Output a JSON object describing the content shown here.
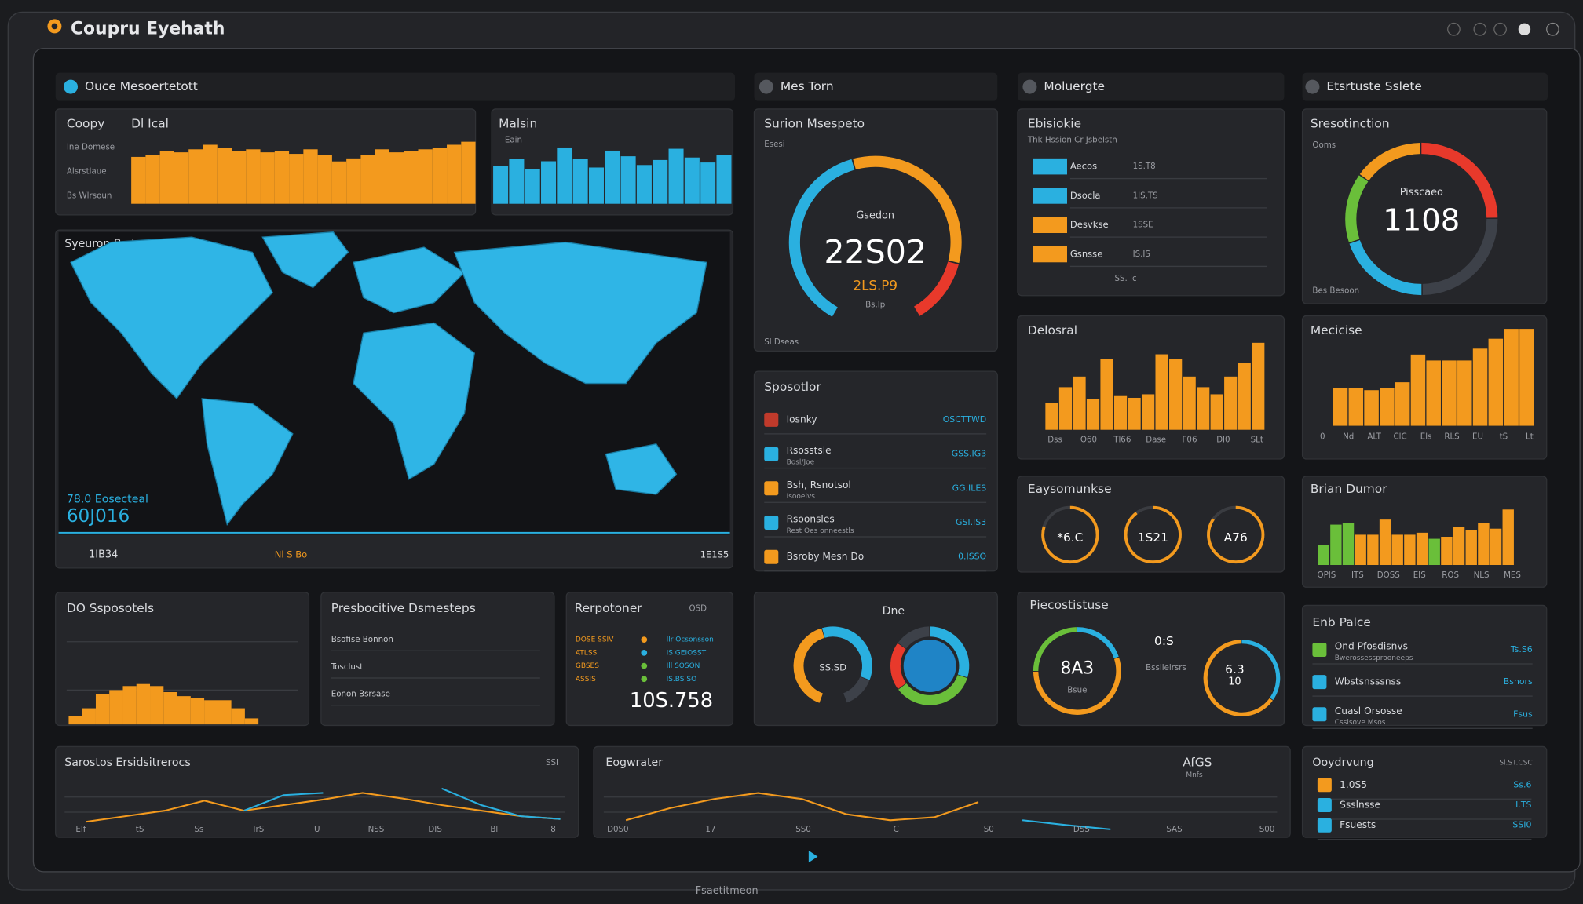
{
  "header": {
    "title": "Coupru Eyehath"
  },
  "tabs": [
    "Ouce Mesoertetott",
    "Mes Torn",
    "Moluergte",
    "Etsrtuste Sslete"
  ],
  "copy": {
    "title": "Coopy",
    "subtitle": "Dl Ical",
    "labels": [
      "Ine Domese",
      "Alsrstlaue",
      "Bs Wlrsoun"
    ],
    "color": "#f39a1e",
    "ylim": [
      0,
      100
    ],
    "values": [
      62,
      64,
      70,
      68,
      72,
      78,
      74,
      70,
      72,
      68,
      70,
      66,
      72,
      64,
      56,
      60,
      64,
      72,
      68,
      70,
      72,
      74,
      78,
      82
    ]
  },
  "malsin": {
    "title": "Malsin",
    "subtitle": "Eain",
    "color": "#2ab0e0",
    "ylim": [
      0,
      100
    ],
    "values": [
      60,
      72,
      55,
      68,
      90,
      72,
      58,
      85,
      76,
      62,
      70,
      88,
      74,
      66,
      78
    ]
  },
  "map": {
    "title": "Syeuron Bcd",
    "stat_label": "78.0 Eosecteal",
    "stat": "60J016",
    "footer_left": "1IB34",
    "footer_mid": "Nl S Bo",
    "footer_right": "1E1S5"
  },
  "gauge": {
    "title": "Surion Msespeto",
    "subtitle": "Esesi",
    "label": "Gsedon",
    "value": "22S02",
    "value_sub": "2LS.P9",
    "note": "Bs.Ip",
    "foot": "Sl Dseas",
    "segments": [
      {
        "color": "#2ab0e0",
        "value": 45
      },
      {
        "color": "#f39a1e",
        "value": 40
      },
      {
        "color": "#e8392b",
        "value": 15
      }
    ]
  },
  "ebis": {
    "title": "Ebisiokie",
    "subtitle": "Thk Hssion Cr Jsbelsth",
    "foot": "SS. Ic",
    "rows": [
      {
        "label": "Aecos",
        "value": "1S.T8",
        "color": "#2ab0e0"
      },
      {
        "label": "Dsocla",
        "value": "1IS.TS",
        "color": "#2ab0e0"
      },
      {
        "label": "Desvkse",
        "value": "1SSE",
        "color": "#f39a1e"
      },
      {
        "label": "Gsnsse",
        "value": "IS.IS",
        "color": "#f39a1e"
      }
    ]
  },
  "donut": {
    "title": "Sresotinction",
    "subtitle": "Ooms",
    "label": "Pisscaeo",
    "value": "1108",
    "foot": "Bes Besoon",
    "segments": [
      {
        "color": "#e8392b",
        "value": 25
      },
      {
        "color": "#3d4149",
        "value": 25
      },
      {
        "color": "#2ab0e0",
        "value": 20
      },
      {
        "color": "#6abf3a",
        "value": 15
      },
      {
        "color": "#f39a1e",
        "value": 15
      }
    ]
  },
  "sposotlor": {
    "title": "Sposotlor",
    "rows": [
      {
        "label": "Iosnky",
        "value": "OSCTTWD",
        "color": "#c03a2b"
      },
      {
        "label": "Rsosstsle",
        "sub": "Bosl/Joe",
        "value": "GSS.IG3",
        "color": "#2ab0e0"
      },
      {
        "label": "Bsh, Rsnotsol",
        "sub": "Isooelvs",
        "value": "GG.ILES",
        "color": "#f39a1e"
      },
      {
        "label": "Rsoonsles",
        "sub": "Rest Oes onneestls",
        "value": "GSI.IS3",
        "color": "#2ab0e0"
      },
      {
        "label": "Bsroby Mesn Do",
        "value": "0.ISSO",
        "color": "#f39a1e"
      }
    ]
  },
  "delosral": {
    "title": "Delosral",
    "color": "#f39a1e",
    "ylim": [
      0,
      100
    ],
    "values": [
      30,
      48,
      60,
      35,
      80,
      38,
      36,
      40,
      85,
      80,
      60,
      48,
      40,
      60,
      75,
      98
    ],
    "xlabels": [
      "Dss",
      "O60",
      "Tl66",
      "Dase",
      "F06",
      "Dl0",
      "SLt"
    ]
  },
  "mecicise": {
    "title": "Mecicise",
    "color": "#f39a1e",
    "ylim": [
      0,
      100
    ],
    "values": [
      38,
      38,
      36,
      38,
      44,
      72,
      66,
      66,
      66,
      78,
      88,
      98,
      98
    ],
    "xlabels": [
      "0",
      "Nd",
      "ALT",
      "ClC",
      "Els",
      "RLS",
      "EU",
      "tS",
      "Lt"
    ]
  },
  "rings": {
    "title": "Eaysomunkse",
    "ylim": [
      0,
      100
    ],
    "values": [
      80,
      90,
      85
    ],
    "labels": [
      "*6.C",
      "1S21",
      "A76"
    ],
    "colors": [
      "#f39a1e",
      "#f39a1e",
      "#f39a1e"
    ]
  },
  "brian": {
    "title": "Brian Dumor",
    "ylim": [
      0,
      60
    ],
    "values": [
      20,
      40,
      42,
      30,
      30,
      45,
      30,
      30,
      32,
      26,
      28,
      38,
      35,
      42,
      36,
      55
    ],
    "colors": [
      "#6abf3a",
      "#6abf3a",
      "#6abf3a",
      "#f39a1e",
      "#f39a1e",
      "#f39a1e",
      "#f39a1e",
      "#f39a1e",
      "#f39a1e",
      "#6abf3a",
      "#f39a1e",
      "#f39a1e",
      "#f39a1e",
      "#f39a1e",
      "#f39a1e",
      "#f39a1e"
    ],
    "xlabels": [
      "OPIS",
      "ITS",
      "DOSS",
      "EIS",
      "ROS",
      "NLS",
      "MES"
    ]
  },
  "dohist": {
    "title": "DO Ssposotels",
    "color": "#f39a1e",
    "ylim": [
      0,
      40
    ],
    "values": [
      8,
      16,
      30,
      34,
      38,
      40,
      38,
      32,
      28,
      26,
      24,
      24,
      16,
      6
    ]
  },
  "presb": {
    "title": "Presbocitive Dsmesteps",
    "rows": [
      "Bsofise Bonnon",
      "Tosclust",
      "Eonon Bsrsase"
    ]
  },
  "rerpo": {
    "title": "Rerpotoner",
    "top": "OSD",
    "value": "10S.758",
    "rows": [
      {
        "label": "DOSE SSIV",
        "value": "Ilr Ocsonsson",
        "color": "#f39a1e"
      },
      {
        "label": "ATLSS",
        "value": "IS GEIOSST",
        "color": "#2ab0e0"
      },
      {
        "label": "GBSES",
        "value": "Ill SOSON",
        "color": "#6abf3a"
      },
      {
        "label": "ASSIS",
        "value": "IS.BS SO",
        "color": "#6abf3a"
      }
    ]
  },
  "pair": {
    "title": "Dne",
    "label": "SS.SD",
    "left": [
      {
        "color": "#f39a1e",
        "value": 45
      },
      {
        "color": "#2ab0e0",
        "value": 40
      },
      {
        "color": "#3d4149",
        "value": 15
      }
    ],
    "right": [
      {
        "color": "#2ab0e0",
        "value": 30
      },
      {
        "color": "#6abf3a",
        "value": 35
      },
      {
        "color": "#e8392b",
        "value": 20
      },
      {
        "color": "#3d4149",
        "value": 15
      }
    ]
  },
  "piec": {
    "title": "Piecostistuse",
    "label": "8A3",
    "sub": "Bsue",
    "mid": "0:S",
    "mid_sub": "Bsslleirsrs",
    "label2": "6.3",
    "sub2": "10",
    "left": [
      {
        "color": "#2ab0e0",
        "value": 20
      },
      {
        "color": "#f39a1e",
        "value": 55
      },
      {
        "color": "#6abf3a",
        "value": 25
      }
    ],
    "right": [
      {
        "color": "#2ab0e0",
        "value": 35
      },
      {
        "color": "#f39a1e",
        "value": 65
      }
    ]
  },
  "enb": {
    "title": "Enb Palce",
    "rows": [
      {
        "label": "Ond Pfosdisnvs",
        "sub": "Bwerossessprooneeps",
        "value": "Ts.S6",
        "color": "#6abf3a"
      },
      {
        "label": "Wbstsnsssnss",
        "value": "Bsnors",
        "color": "#2ab0e0"
      },
      {
        "label": "Cuasl Orsosse",
        "sub": "Csslsove Msos",
        "value": "Fsus",
        "color": "#2ab0e0"
      }
    ]
  },
  "line1": {
    "title": "Sarostos Ersidsitrerocs",
    "top": "SSI",
    "ylim": [
      0,
      100
    ],
    "series": [
      {
        "color": "#f39a1e",
        "values": [
          10,
          20,
          30,
          48,
          30,
          40,
          50,
          62,
          52,
          40,
          30,
          20,
          15
        ]
      },
      {
        "color": "#2ab0e0",
        "values": [
          null,
          null,
          null,
          null,
          30,
          58,
          62,
          null,
          null,
          null,
          null,
          null,
          null
        ]
      },
      {
        "color": "#2ab0e0",
        "values": [
          null,
          null,
          null,
          null,
          null,
          null,
          null,
          null,
          null,
          70,
          40,
          20,
          15
        ]
      }
    ],
    "xlabels": [
      "Elf",
      "tS",
      "Ss",
      "TrS",
      "U",
      "NSS",
      "DIS",
      "Bl",
      "8"
    ]
  },
  "line2": {
    "title": "Eogwrater",
    "top": "AfGS",
    "top_sub": "Mnfs",
    "ylim": [
      0,
      100
    ],
    "series": [
      {
        "color": "#f39a1e",
        "values": [
          20,
          40,
          55,
          65,
          55,
          30,
          20,
          25,
          50,
          null,
          null,
          null
        ]
      },
      {
        "color": "#2ab0e0",
        "values": [
          null,
          null,
          null,
          null,
          null,
          null,
          null,
          null,
          null,
          20,
          12,
          5
        ]
      }
    ],
    "xlabels": [
      "D0S0",
      "17",
      "SS0",
      "C",
      "S0",
      "DSS",
      "SAS",
      "S00"
    ]
  },
  "ooyd": {
    "title": "Ooydrvung",
    "top": "Sl.ST.CSC",
    "rows": [
      {
        "label": "1.0S5",
        "value": "Ss.6",
        "color": "#f39a1e"
      },
      {
        "label": "Ssslnsse",
        "value": "I.TS",
        "color": "#2ab0e0"
      },
      {
        "label": "Fsuests",
        "value": "SSI0",
        "color": "#2ab0e0"
      }
    ]
  },
  "status": {
    "text": "Fsaetitmeon"
  }
}
